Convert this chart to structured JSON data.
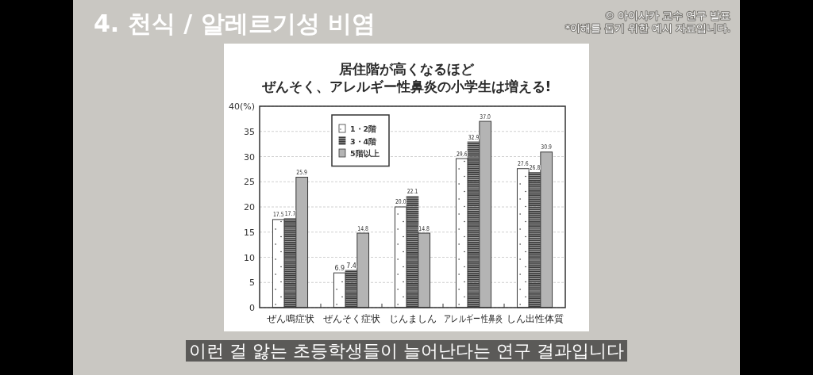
{
  "chart_data": {
    "type": "bar",
    "title": "4. 천식 / 알레르기성 비염",
    "subtitle": "居住階が高くなるほどぜんそく、アレルギー性鼻炎の小学生は増える!",
    "categories": [
      "ぜん鳴症状",
      "ぜんそく症状",
      "じんましん",
      "アレルギー性鼻炎",
      "しん出性体質"
    ],
    "series": [
      {
        "name": "1・2階",
        "color": "#ffffff",
        "values": [
          17.5,
          6.9,
          20.0,
          29.6,
          27.6
        ],
        "value_labels": [
          "17.5",
          "6.9",
          "20.0",
          "29.6",
          "27.6"
        ]
      },
      {
        "name": "3・4階",
        "color": "#3c3c3c",
        "values": [
          17.7,
          7.4,
          22.1,
          32.9,
          26.8
        ],
        "value_labels": [
          "17.7",
          "7.4",
          "22.1",
          "32.9",
          "26.8"
        ]
      },
      {
        "name": "5階以上",
        "color": "#b4b4b4",
        "values": [
          25.9,
          14.8,
          14.8,
          37.0,
          30.9
        ],
        "value_labels": [
          "25.9",
          "14.8",
          "14.8",
          "37.0",
          "30.9"
        ]
      }
    ],
    "ylim": [
      0,
      40
    ],
    "yticks": [
      0,
      5,
      10,
      15,
      20,
      25,
      30,
      35,
      {
        "value": 40,
        "label": "40(%)"
      }
    ],
    "grid": "y",
    "legend": "top left",
    "annotations": [
      "© 아이사카 교수 연구 발표",
      "*이해를 돕기 위한 예시 자료입니다.",
      "이런 걸 앓는 초등학생들이 늘어난다는 연구 결과입니다"
    ]
  }
}
